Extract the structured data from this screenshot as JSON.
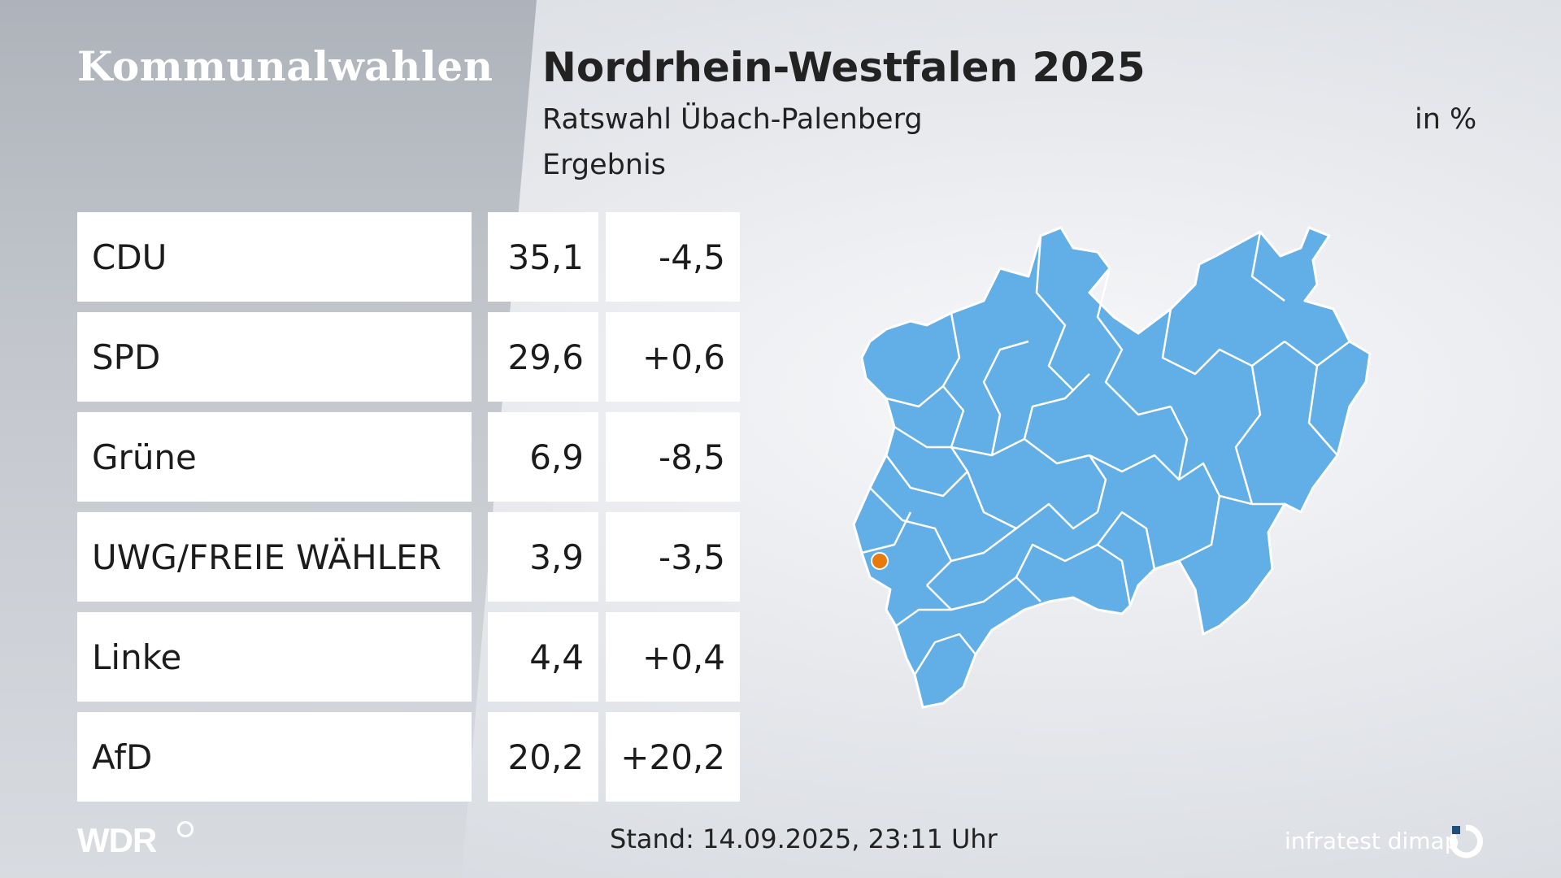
{
  "brand": "Kommunalwahlen",
  "header": {
    "title": "Nordrhein-Westfalen 2025",
    "subtitle": "Ratswahl Übach-Palenberg",
    "subtitle2": "Ergebnis",
    "unit": "in %"
  },
  "results": [
    {
      "party": "CDU",
      "value": "35,1",
      "diff": "-4,5"
    },
    {
      "party": "SPD",
      "value": "29,6",
      "diff": "+0,6"
    },
    {
      "party": "Grüne",
      "value": "6,9",
      "diff": "-8,5"
    },
    {
      "party": "UWG/FREIE WÄHLER",
      "value": "3,9",
      "diff": "-3,5"
    },
    {
      "party": "Linke",
      "value": "4,4",
      "diff": "+0,4"
    },
    {
      "party": "AfD",
      "value": "20,2",
      "diff": "+20,2"
    }
  ],
  "footer": {
    "stand": "Stand: 14.09.2025, 23:11 Uhr",
    "wdr": "WDR",
    "institute": "infratest dimap"
  },
  "colors": {
    "map_fill": "#62aee6",
    "map_border": "#ffffff",
    "marker": "#e8790c",
    "row_bg": "#ffffff"
  },
  "map": {
    "region": "Nordrhein-Westfalen",
    "highlight_marker": "orange-dot"
  }
}
